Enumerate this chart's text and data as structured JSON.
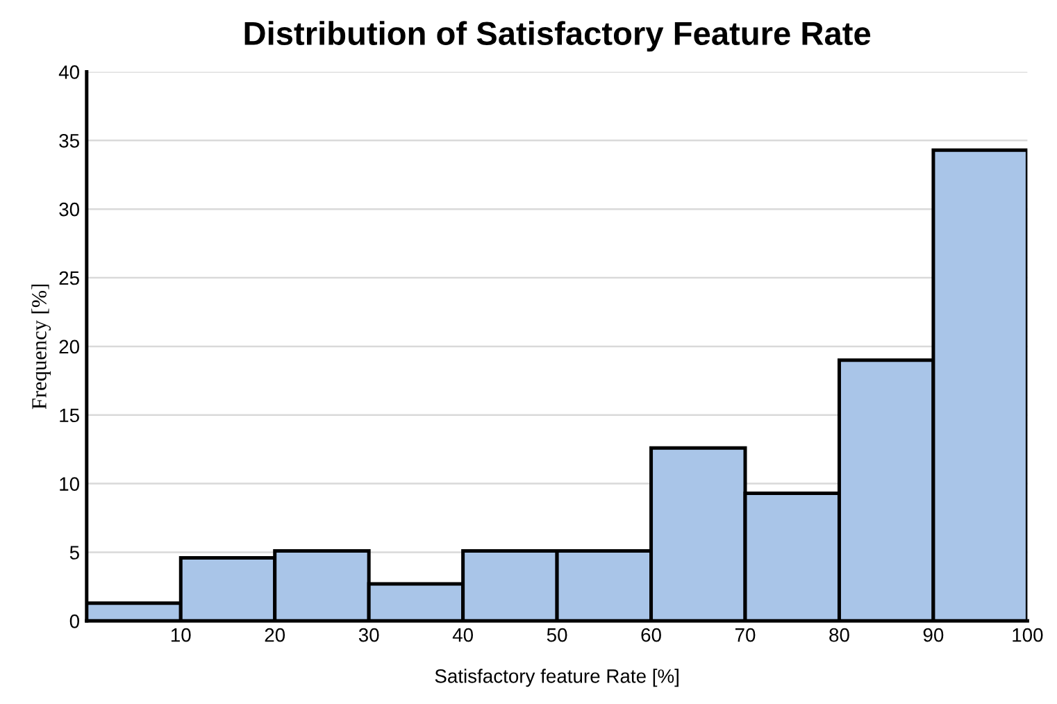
{
  "chart_data": {
    "type": "histogram",
    "title": "Distribution of Satisfactory Feature Rate",
    "xlabel": "Satisfactory feature Rate [%]",
    "ylabel": "Frequency [%]",
    "bins": [
      0,
      10,
      20,
      30,
      40,
      50,
      60,
      70,
      80,
      90,
      100
    ],
    "values": [
      1.3,
      4.6,
      5.1,
      2.7,
      5.1,
      5.1,
      12.6,
      9.3,
      19.0,
      34.3
    ],
    "color": "#a9c5e8",
    "xlim": [
      0,
      100
    ],
    "xticks": [
      10,
      20,
      30,
      40,
      50,
      60,
      70,
      80,
      90,
      100
    ],
    "ylim": [
      0,
      40
    ],
    "yticks": [
      0,
      5,
      10,
      15,
      20,
      25,
      30,
      35,
      40
    ],
    "grid": "y"
  }
}
